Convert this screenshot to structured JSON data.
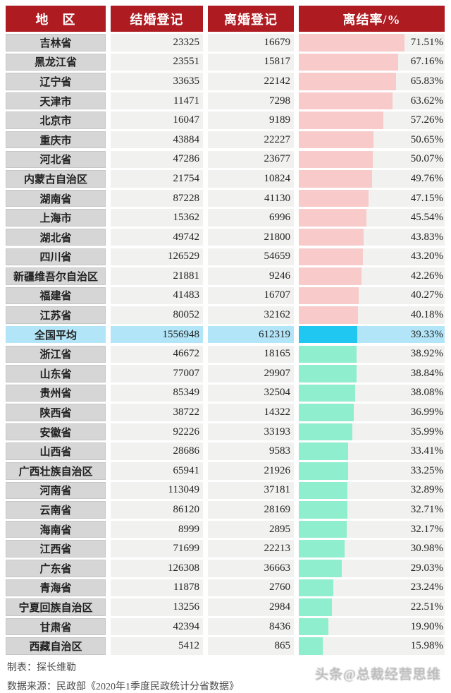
{
  "colors": {
    "header_bg": "#ae1c22",
    "header_text": "#ffffff",
    "region_cell_bg": "#d6d6d6",
    "data_cell_bg": "#f1f1f0",
    "above_average_bar": "#f8caca",
    "below_average_bar": "#8feecd",
    "average_row_bg": "#b3e5f8",
    "average_row_bar": "#1fc7f1",
    "text": "#222222",
    "footer_text": "#4a4a4a"
  },
  "chart_data": {
    "type": "bar",
    "title": "",
    "columns": [
      "地　区",
      "结婚登记",
      "离婚登记",
      "离结率/%"
    ],
    "categories": [
      "吉林省",
      "黑龙江省",
      "辽宁省",
      "天津市",
      "北京市",
      "重庆市",
      "河北省",
      "内蒙古自治区",
      "湖南省",
      "上海市",
      "湖北省",
      "四川省",
      "新疆维吾尔自治区",
      "福建省",
      "江苏省",
      "全国平均",
      "浙江省",
      "山东省",
      "贵州省",
      "陕西省",
      "安徽省",
      "山西省",
      "广西壮族自治区",
      "河南省",
      "云南省",
      "海南省",
      "江西省",
      "广东省",
      "青海省",
      "宁夏回族自治区",
      "甘肃省",
      "西藏自治区"
    ],
    "series": [
      {
        "name": "结婚登记",
        "values": [
          23325,
          23551,
          33635,
          11471,
          16047,
          43884,
          47286,
          21754,
          87228,
          15362,
          49742,
          126529,
          21881,
          41483,
          80052,
          1556948,
          46672,
          77007,
          85349,
          38722,
          92226,
          28686,
          65941,
          113049,
          86120,
          8999,
          71699,
          126308,
          11878,
          13256,
          42394,
          5412
        ]
      },
      {
        "name": "离婚登记",
        "values": [
          16679,
          15817,
          22142,
          7298,
          9189,
          22227,
          23677,
          10824,
          41130,
          6996,
          21800,
          54659,
          9246,
          16707,
          32162,
          612319,
          18165,
          29907,
          32504,
          14322,
          33193,
          9583,
          21926,
          37181,
          28169,
          2895,
          22213,
          36663,
          2760,
          2984,
          8436,
          865
        ]
      },
      {
        "name": "离结率/%",
        "values": [
          71.51,
          67.16,
          65.83,
          63.62,
          57.26,
          50.65,
          50.07,
          49.76,
          47.15,
          45.54,
          43.83,
          43.2,
          42.26,
          40.27,
          40.18,
          39.33,
          38.92,
          38.84,
          38.08,
          36.99,
          35.99,
          33.41,
          33.25,
          32.89,
          32.71,
          32.17,
          30.98,
          29.03,
          23.24,
          22.51,
          19.9,
          15.98
        ]
      }
    ],
    "highlight_row": "全国平均",
    "sort": "descending by 离结率/%",
    "legend": "none",
    "grid": "off",
    "bar_axis": {
      "min": 0,
      "max_shown_ratio": 71.51
    },
    "bar_color_rule": "rows above national average = pink, national average = cyan on light-blue row, rows below = mint green"
  },
  "footer": {
    "credit": "制表：探长维勒",
    "source": "数据来源：民政部《2020年1季度民政统计分省数据》",
    "watermark": "头条@总裁经营思维"
  }
}
